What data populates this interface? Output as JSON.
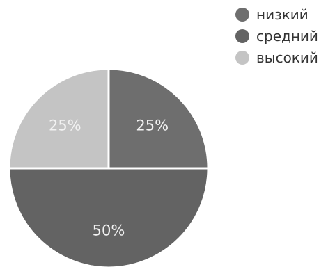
{
  "chart_data": {
    "type": "pie",
    "title": "",
    "slices": [
      {
        "label": "низкий",
        "value": 25,
        "display": "25%",
        "color": "#6e6e6e"
      },
      {
        "label": "средний",
        "value": 50,
        "display": "50%",
        "color": "#636363"
      },
      {
        "label": "высокий",
        "value": 25,
        "display": "25%",
        "color": "#c4c4c4"
      }
    ],
    "legend_position": "top-right"
  }
}
